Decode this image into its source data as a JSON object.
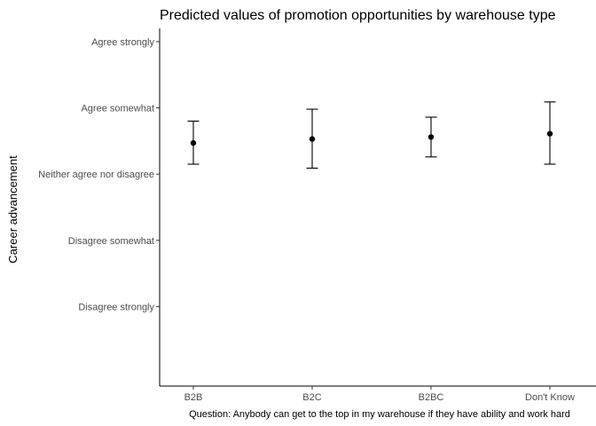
{
  "chart_data": {
    "type": "scatter",
    "title": "Predicted values of promotion opportunities by warehouse type",
    "xlabel": "Question: Anybody can get to the top in my warehouse if they have ability and work hard",
    "ylabel": "Career advancement",
    "categories": [
      "B2B",
      "B2C",
      "B2BC",
      "Don't Know"
    ],
    "y_tick_labels": [
      {
        "value": 1,
        "label": "Disagree strongly"
      },
      {
        "value": 2,
        "label": "Disagree somewhat"
      },
      {
        "value": 3,
        "label": "Neither agree nor disagree"
      },
      {
        "value": 4,
        "label": "Agree somewhat"
      },
      {
        "value": 5,
        "label": "Agree strongly"
      }
    ],
    "ylim": [
      -0.2,
      5.2
    ],
    "series": [
      {
        "values": [
          3.47,
          3.53,
          3.56,
          3.61
        ],
        "lower": [
          3.15,
          3.09,
          3.26,
          3.15
        ],
        "upper": [
          3.8,
          3.98,
          3.86,
          4.09
        ]
      }
    ],
    "grid": false
  }
}
